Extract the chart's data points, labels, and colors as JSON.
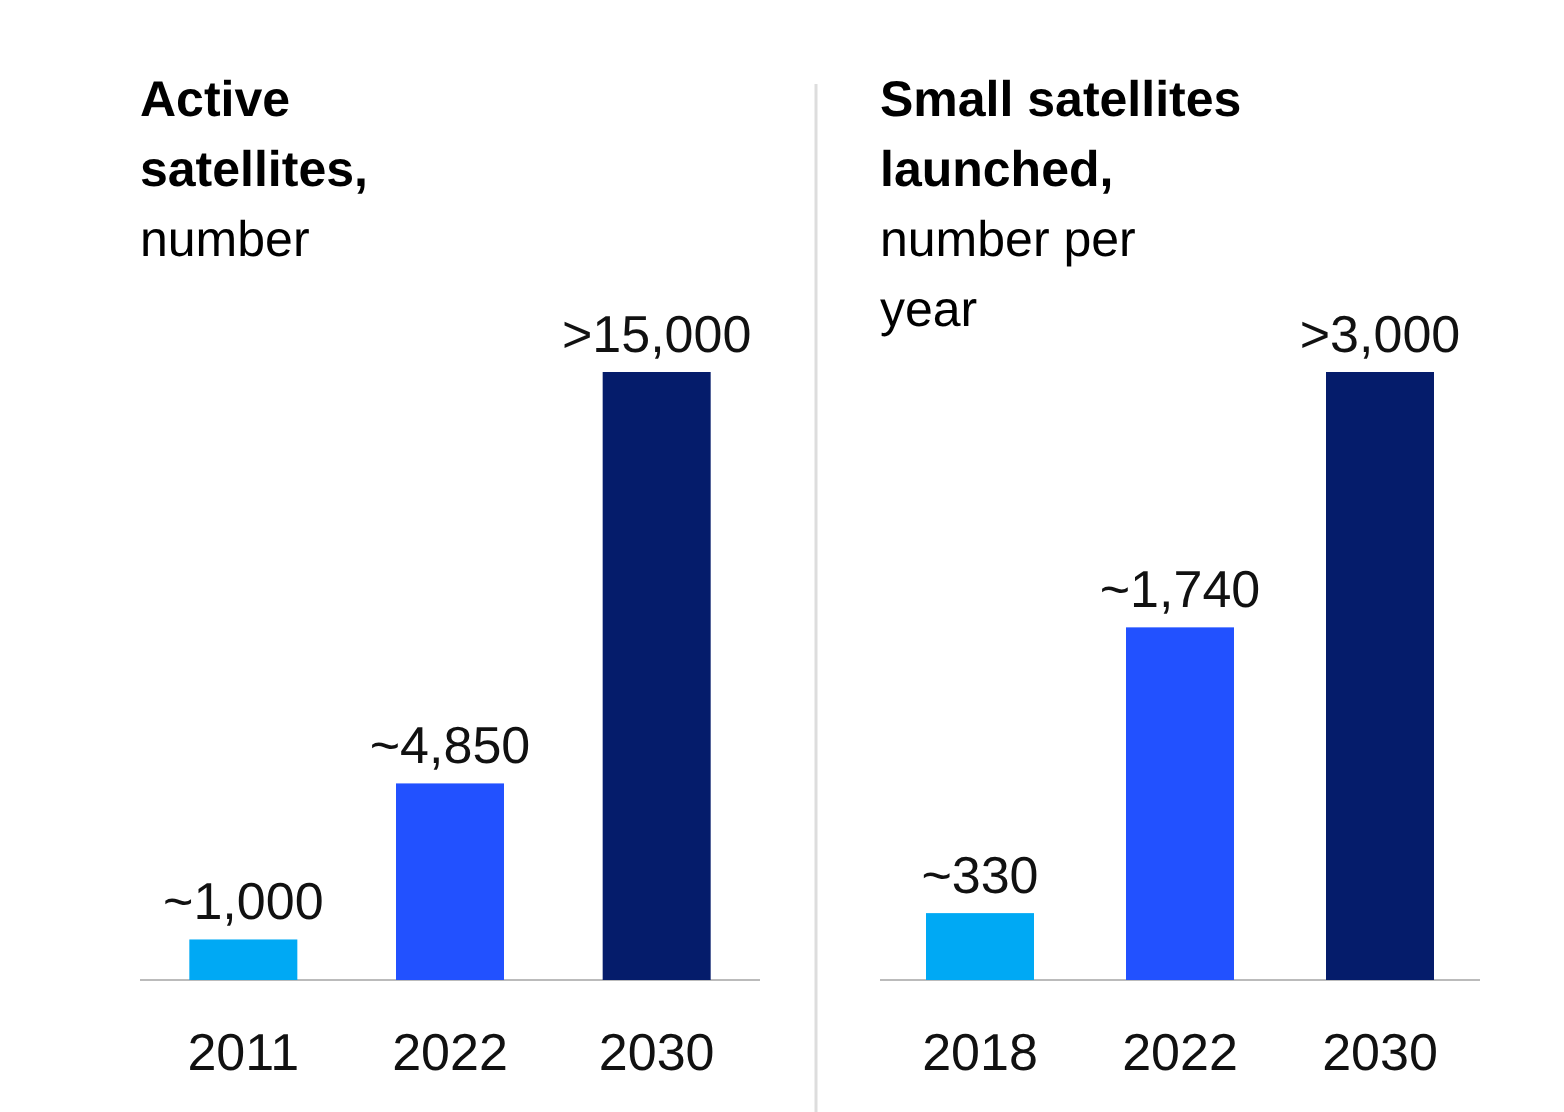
{
  "chart_data": [
    {
      "type": "bar",
      "title": "Active satellites,",
      "subtitle": "number",
      "categories": [
        "2011",
        "2022",
        "2030"
      ],
      "values": [
        1000,
        4850,
        15000
      ],
      "colors": [
        "#00a9f4",
        "#2251ff",
        "#051c6b"
      ],
      "value_labels": [
        "~1,000",
        "~4,850",
        ">15,000"
      ]
    },
    {
      "type": "bar",
      "title": "Small satellites launched,",
      "subtitle": "number per year",
      "categories": [
        "2018",
        "2022",
        "2030"
      ],
      "values": [
        330,
        1740,
        3000
      ],
      "colors": [
        "#00a9f4",
        "#2251ff",
        "#051c6b"
      ],
      "value_labels": [
        "~330",
        "~1,740",
        ">3,000"
      ]
    }
  ]
}
